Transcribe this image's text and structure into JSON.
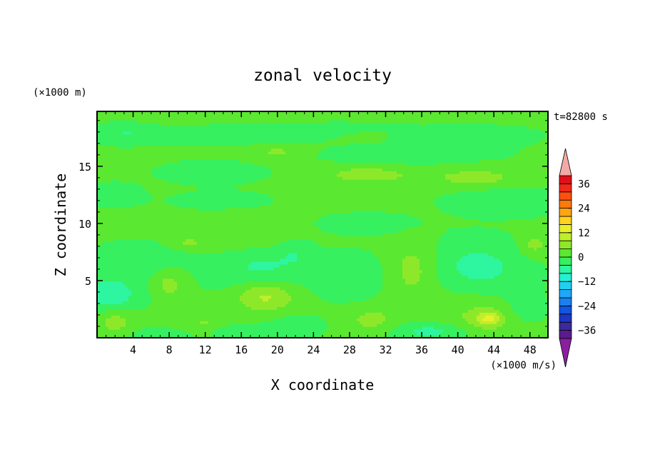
{
  "chart_data": {
    "type": "heatmap",
    "title": "zonal velocity",
    "xlabel": "X coordinate",
    "ylabel": "Z coordinate",
    "x_unit": "(×1000 m/s)",
    "y_unit": "(×1000 m)",
    "time_label": "t=82800 s",
    "xlim": [
      0,
      50
    ],
    "ylim": [
      0,
      19.8
    ],
    "x_ticks": [
      4,
      8,
      12,
      16,
      20,
      24,
      28,
      32,
      36,
      40,
      44,
      48
    ],
    "y_ticks": [
      5,
      10,
      15
    ],
    "colorbar": {
      "min": -40,
      "max": 40,
      "step": 4,
      "tick_values": [
        36,
        24,
        12,
        0,
        -12,
        -24,
        -36
      ],
      "tick_labels": [
        "36",
        "24",
        "12",
        "0",
        "−12",
        "−24",
        "−36"
      ],
      "colors": [
        "#5a1b8f",
        "#3a2a9a",
        "#1d37c2",
        "#1155e0",
        "#1c7ff0",
        "#1ea8f5",
        "#22cff0",
        "#26f0d2",
        "#2ef5a0",
        "#37f060",
        "#5be830",
        "#8ee82a",
        "#c0ee2a",
        "#e8f02a",
        "#ffd21e",
        "#ffa414",
        "#ff7a0c",
        "#ff5010",
        "#f02a18",
        "#e0101a"
      ],
      "over_color": "#f4a9a6",
      "under_color": "#8a1fa0"
    },
    "features": [
      {
        "x": 24,
        "z": 10,
        "rx": 40,
        "rz": 16,
        "u": 1
      },
      {
        "x": 25,
        "z": 19.3,
        "rx": 30,
        "rz": 0.5,
        "u": 3
      },
      {
        "x": 15,
        "z": 17.8,
        "rx": 9,
        "rz": 0.8,
        "u": -4.5
      },
      {
        "x": 41,
        "z": 17.7,
        "rx": 6,
        "rz": 0.9,
        "u": -4.5
      },
      {
        "x": 27,
        "z": 18.7,
        "rx": 7,
        "rz": 0.5,
        "u": -3
      },
      {
        "x": 3,
        "z": 18.1,
        "rx": 3,
        "rz": 1,
        "u": -4
      },
      {
        "x": 34,
        "z": 16,
        "rx": 9,
        "rz": 0.8,
        "u": -4
      },
      {
        "x": 13,
        "z": 14.5,
        "rx": 6,
        "rz": 1,
        "u": -3
      },
      {
        "x": 30,
        "z": 14.3,
        "rx": 5,
        "rz": 0.8,
        "u": 5
      },
      {
        "x": 42,
        "z": 14,
        "rx": 5,
        "rz": 0.9,
        "u": 5
      },
      {
        "x": 20,
        "z": 16.3,
        "rx": 3,
        "rz": 0.7,
        "u": 4
      },
      {
        "x": 45,
        "z": 12,
        "rx": 6,
        "rz": 1.2,
        "u": -4.5
      },
      {
        "x": 2,
        "z": 12.5,
        "rx": 3,
        "rz": 1,
        "u": -3
      },
      {
        "x": 30,
        "z": 10,
        "rx": 6,
        "rz": 1,
        "u": -3
      },
      {
        "x": 14,
        "z": 12,
        "rx": 6,
        "rz": 0.9,
        "u": -2.5
      },
      {
        "x": 17,
        "z": 9,
        "rx": 5,
        "rz": 1.6,
        "u": 4.5
      },
      {
        "x": 10,
        "z": 8.3,
        "rx": 2,
        "rz": 0.5,
        "u": 4
      },
      {
        "x": 5,
        "z": 7,
        "rx": 5,
        "rz": 1.4,
        "u": -3.5
      },
      {
        "x": 18,
        "z": 5.8,
        "rx": 5,
        "rz": 3,
        "u": -6
      },
      {
        "x": 18.5,
        "z": 3.7,
        "rx": 3.5,
        "rz": 1.4,
        "u": 11
      },
      {
        "x": 1.5,
        "z": 3.8,
        "rx": 3,
        "rz": 1.6,
        "u": -8
      },
      {
        "x": 8,
        "z": 4.7,
        "rx": 1.4,
        "rz": 1.2,
        "u": 5
      },
      {
        "x": 22,
        "z": 7.5,
        "rx": 2,
        "rz": 1.2,
        "u": -3
      },
      {
        "x": 28,
        "z": 5.5,
        "rx": 4,
        "rz": 2,
        "u": -4
      },
      {
        "x": 35,
        "z": 6,
        "rx": 2.5,
        "rz": 2.5,
        "u": 5
      },
      {
        "x": 42,
        "z": 7,
        "rx": 5,
        "rz": 2,
        "u": -4.5
      },
      {
        "x": 43,
        "z": 5.5,
        "rx": 5,
        "rz": 1.5,
        "u": -3
      },
      {
        "x": 48.5,
        "z": 8.2,
        "rx": 1.5,
        "rz": 1,
        "u": 5
      },
      {
        "x": 30.5,
        "z": 1.6,
        "rx": 2.5,
        "rz": 1,
        "u": 5
      },
      {
        "x": 43,
        "z": 1.8,
        "rx": 4,
        "rz": 1.4,
        "u": 5
      },
      {
        "x": 43.5,
        "z": 1.7,
        "rx": 1.2,
        "rz": 0.6,
        "u": 9
      },
      {
        "x": 2,
        "z": 1.5,
        "rx": 2,
        "rz": 1.2,
        "u": 6
      },
      {
        "x": 12,
        "z": 1.2,
        "rx": 2.5,
        "rz": 1,
        "u": 4
      },
      {
        "x": 15,
        "z": 0.6,
        "rx": 3,
        "rz": 0.6,
        "u": -4
      },
      {
        "x": 7,
        "z": 0.3,
        "rx": 5,
        "rz": 0.6,
        "u": -2.5
      },
      {
        "x": 37,
        "z": 0.6,
        "rx": 4,
        "rz": 0.7,
        "u": -6
      },
      {
        "x": 22,
        "z": 1,
        "rx": 3,
        "rz": 1,
        "u": -3
      },
      {
        "x": 47,
        "z": 2.5,
        "rx": 2.5,
        "rz": 1.5,
        "u": -3
      }
    ]
  }
}
